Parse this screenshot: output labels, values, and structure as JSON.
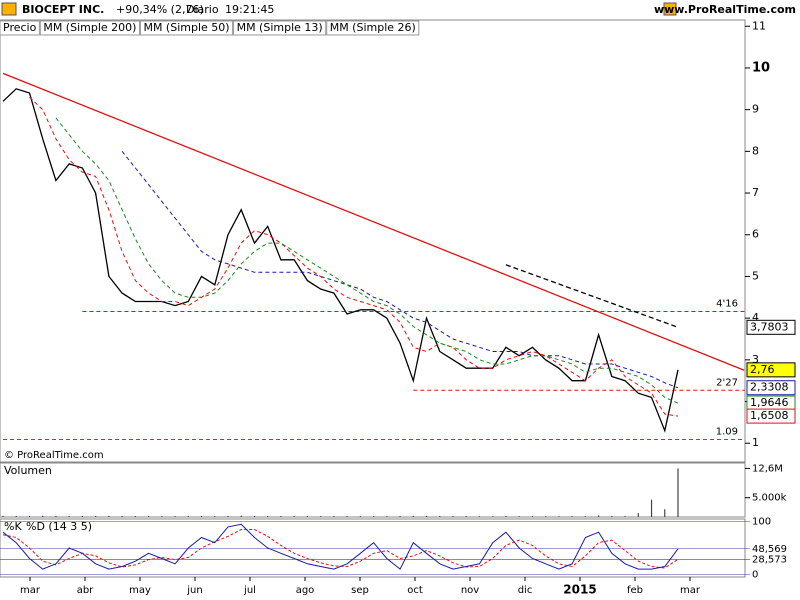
{
  "chart_data": {
    "type": "line",
    "header": {
      "symbol": "BIOCEPT INC.",
      "change": "+90,34% (2,76)",
      "period": "Diario",
      "time": "19:21:45",
      "site": "www.ProRealTime.com"
    },
    "watermark": "© ProRealTime.com",
    "price_label": "Precio",
    "legend_extra": [
      {
        "name": "MM (Simple 200)",
        "color": "#000000"
      }
    ],
    "ylim": [
      0.55,
      11.15
    ],
    "yticks": [
      1,
      2,
      3,
      4,
      5,
      6,
      7,
      8,
      9,
      10,
      11
    ],
    "bold_ticks": [
      10
    ],
    "month_labels": [
      "mar",
      "abr",
      "may",
      "jun",
      "jul",
      "ago",
      "sep",
      "oct",
      "nov",
      "dic",
      "2015",
      "feb",
      "mar"
    ],
    "series": [
      {
        "name": "Precio",
        "color": "#000000",
        "values": [
          9.2,
          9.5,
          9.4,
          8.3,
          7.3,
          7.7,
          7.6,
          7.0,
          5.0,
          4.6,
          4.4,
          4.4,
          4.4,
          4.3,
          4.4,
          5.0,
          4.8,
          6.0,
          6.6,
          5.8,
          6.2,
          5.4,
          5.4,
          4.9,
          4.7,
          4.6,
          4.1,
          4.2,
          4.2,
          4.0,
          3.4,
          2.5,
          4.0,
          3.2,
          3.0,
          2.8,
          2.8,
          2.8,
          3.3,
          3.1,
          3.3,
          3.0,
          2.8,
          2.5,
          2.5,
          3.6,
          2.6,
          2.5,
          2.2,
          2.1,
          1.3,
          2.76
        ]
      },
      {
        "name": "MM (Simple 50)",
        "color": "#1a1aa6",
        "values": [
          null,
          null,
          null,
          null,
          null,
          null,
          null,
          null,
          null,
          8.0,
          7.6,
          7.2,
          6.8,
          6.4,
          6.0,
          5.6,
          5.4,
          5.3,
          5.2,
          5.1,
          5.1,
          5.1,
          5.1,
          5.1,
          5.0,
          4.9,
          4.8,
          4.7,
          4.5,
          4.4,
          4.2,
          4.0,
          3.9,
          3.7,
          3.5,
          3.4,
          3.3,
          3.2,
          3.2,
          3.2,
          3.1,
          3.1,
          3.1,
          3.0,
          2.9,
          2.9,
          2.9,
          2.8,
          2.7,
          2.6,
          2.45,
          2.33
        ]
      },
      {
        "name": "MM (Simple 13)",
        "color": "#e01010",
        "values": [
          null,
          null,
          9.3,
          9.0,
          8.3,
          7.8,
          7.5,
          7.4,
          6.6,
          5.6,
          4.9,
          4.6,
          4.4,
          4.4,
          4.3,
          4.5,
          4.7,
          5.2,
          5.8,
          6.1,
          6.0,
          5.8,
          5.5,
          5.2,
          5.0,
          4.7,
          4.5,
          4.4,
          4.3,
          4.2,
          3.9,
          3.3,
          3.2,
          3.4,
          3.3,
          3.0,
          2.8,
          2.8,
          3.0,
          3.1,
          3.2,
          3.1,
          2.9,
          2.7,
          2.5,
          2.8,
          3.0,
          2.6,
          2.4,
          2.2,
          1.7,
          1.65
        ]
      },
      {
        "name": "MM (Simple 26)",
        "color": "#1a8a1a",
        "values": [
          null,
          null,
          null,
          null,
          8.8,
          8.4,
          8.0,
          7.7,
          7.3,
          6.6,
          5.9,
          5.3,
          4.9,
          4.6,
          4.5,
          4.5,
          4.6,
          4.9,
          5.3,
          5.6,
          5.8,
          5.8,
          5.6,
          5.4,
          5.2,
          5.0,
          4.8,
          4.6,
          4.4,
          4.3,
          4.1,
          3.8,
          3.6,
          3.4,
          3.3,
          3.2,
          3.0,
          2.9,
          2.9,
          3.0,
          3.1,
          3.1,
          3.0,
          2.9,
          2.7,
          2.8,
          2.8,
          2.7,
          2.6,
          2.4,
          2.1,
          1.96
        ]
      }
    ],
    "reference_lines": [
      {
        "value": 4.16,
        "label": "4'16",
        "color": "#e01010",
        "start": 6
      },
      {
        "value": 2.27,
        "label": "2'27",
        "color": "#e01010",
        "start": 31
      },
      {
        "value": 1.09,
        "label": "1.09",
        "color": "#1a8a1a",
        "start": 0
      }
    ],
    "trendlines": [
      {
        "color": "#e01010",
        "from": [
          0,
          9.87
        ],
        "to": [
          56,
          2.75
        ]
      },
      {
        "color": "#000000",
        "from": [
          38,
          5.28
        ],
        "to": [
          51,
          3.78
        ],
        "dashed": true
      }
    ],
    "value_boxes": [
      {
        "value": 3.7803,
        "label": "3,7803",
        "color": "#000000",
        "fill": "#ffffff"
      },
      {
        "value": 2.76,
        "label": "2,76",
        "color": "#000000",
        "fill": "#ffff00"
      },
      {
        "value": 2.3308,
        "label": "2,3308",
        "color": "#1a1aa6",
        "fill": "#ffffff"
      },
      {
        "value": 1.9646,
        "label": "1,9646",
        "color": "#1a8a1a",
        "fill": "#ffffff"
      },
      {
        "value": 1.6508,
        "label": "1,6508",
        "color": "#e01010",
        "fill": "#ffffff"
      }
    ],
    "volume": {
      "name": "Volumen",
      "ylim": [
        0,
        14000
      ],
      "yticks": [
        {
          "value": 12600,
          "label": "12,6M"
        },
        {
          "value": 5000,
          "label": "5.000k"
        }
      ],
      "values": [
        300,
        250,
        250,
        300,
        280,
        250,
        300,
        280,
        300,
        250,
        240,
        230,
        220,
        230,
        240,
        260,
        250,
        300,
        350,
        280,
        260,
        250,
        240,
        230,
        220,
        210,
        230,
        220,
        210,
        200,
        240,
        280,
        300,
        250,
        220,
        210,
        200,
        190,
        250,
        220,
        210,
        200,
        200,
        210,
        220,
        400,
        250,
        230,
        1000,
        4500,
        2000,
        12600
      ]
    },
    "stochastic": {
      "k_name": "%K",
      "d_name": "%D (14 3 5)",
      "ylim": [
        -5,
        105
      ],
      "yticks": [
        0,
        {
          "value": 28.573,
          "label": "28,573"
        },
        {
          "value": 48.569,
          "label": "48,569"
        },
        100
      ],
      "k": [
        80,
        60,
        30,
        10,
        20,
        50,
        40,
        20,
        10,
        15,
        25,
        40,
        30,
        20,
        50,
        70,
        60,
        90,
        95,
        70,
        50,
        40,
        30,
        20,
        15,
        10,
        20,
        40,
        60,
        30,
        10,
        60,
        40,
        20,
        10,
        15,
        20,
        60,
        80,
        50,
        30,
        20,
        10,
        20,
        70,
        80,
        40,
        20,
        10,
        10,
        15,
        48.569
      ],
      "d": [
        75,
        70,
        50,
        25,
        18,
        30,
        40,
        35,
        22,
        14,
        18,
        28,
        32,
        28,
        32,
        50,
        62,
        72,
        85,
        85,
        72,
        55,
        40,
        30,
        22,
        16,
        15,
        25,
        40,
        45,
        30,
        35,
        45,
        35,
        22,
        14,
        15,
        30,
        55,
        65,
        55,
        35,
        20,
        15,
        35,
        60,
        65,
        45,
        25,
        15,
        12,
        28.573
      ],
      "k_color": "#1a1aa6",
      "d_color": "#e01010"
    }
  }
}
